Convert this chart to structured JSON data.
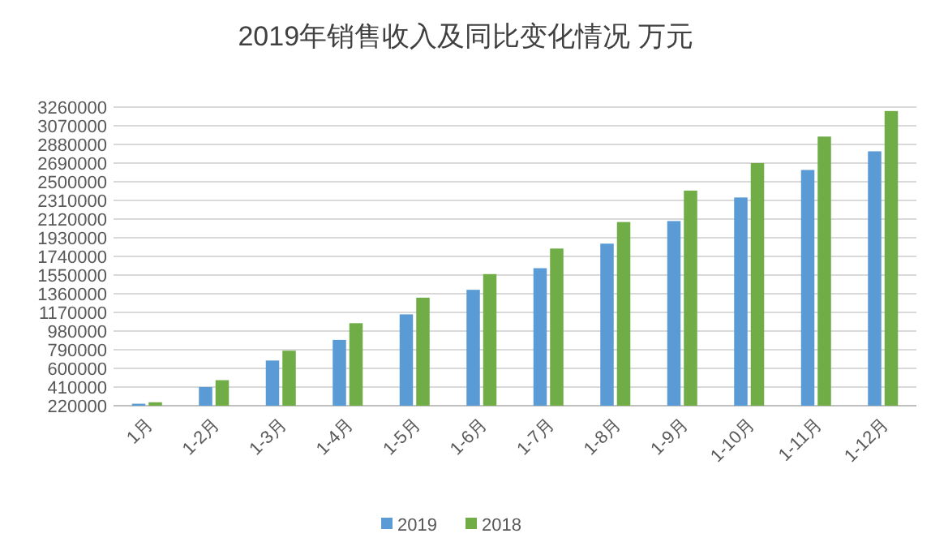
{
  "chart_data": {
    "type": "bar",
    "title": "2019年销售收入及同比变化情况 万元",
    "categories": [
      "1月",
      "1-2月",
      "1-3月",
      "1-4月",
      "1-5月",
      "1-6月",
      "1-7月",
      "1-8月",
      "1-9月",
      "1-10月",
      "1-11月",
      "1-12月"
    ],
    "series": [
      {
        "name": "2019",
        "color": "#5b9bd5",
        "values": [
          240000,
          410000,
          680000,
          890000,
          1150000,
          1400000,
          1620000,
          1870000,
          2100000,
          2340000,
          2620000,
          2810000
        ]
      },
      {
        "name": "2018",
        "color": "#70ad47",
        "values": [
          255000,
          480000,
          780000,
          1060000,
          1320000,
          1560000,
          1820000,
          2090000,
          2410000,
          2690000,
          2960000,
          3220000
        ]
      }
    ],
    "ylim": [
      220000,
      3260000
    ],
    "yticks": [
      220000,
      410000,
      600000,
      790000,
      980000,
      1170000,
      1360000,
      1550000,
      1740000,
      1930000,
      2120000,
      2310000,
      2500000,
      2690000,
      2880000,
      3070000,
      3260000
    ],
    "grid": "y",
    "legend": "bottom"
  }
}
